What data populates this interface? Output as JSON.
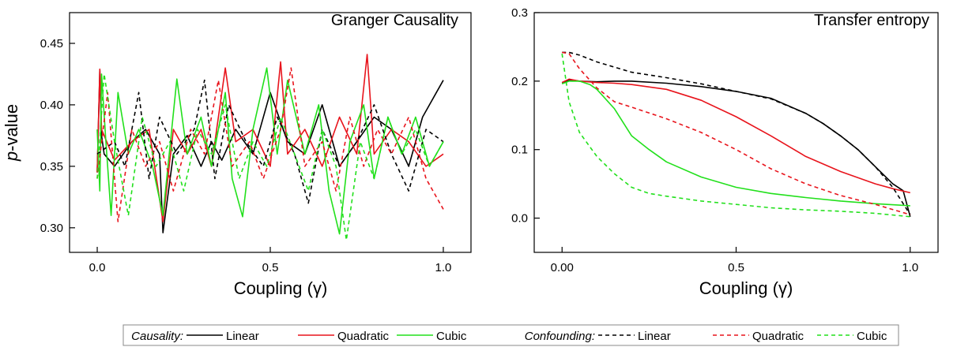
{
  "chart_data": [
    {
      "type": "line",
      "title": "Granger Causality",
      "xlabel": "Coupling (γ)",
      "ylabel_italic": "p",
      "ylabel_rest": "-value",
      "xlim": [
        -0.08,
        1.08
      ],
      "ylim": [
        0.28,
        0.475
      ],
      "xticks": [
        0.0,
        0.5,
        1.0
      ],
      "xtick_labels": [
        "0.0",
        "0.5",
        "1.0"
      ],
      "yticks": [
        0.3,
        0.35,
        0.4,
        0.45
      ],
      "ytick_labels": [
        "0.30",
        "0.35",
        "0.40",
        "0.45"
      ],
      "grid": false,
      "series": [
        {
          "name": "Linear",
          "color": "#000000",
          "dash": "solid",
          "x": [
            0.0,
            0.0075,
            0.0125,
            0.02,
            0.05,
            0.1,
            0.14,
            0.18,
            0.19,
            0.22,
            0.26,
            0.3,
            0.33,
            0.36,
            0.4,
            0.45,
            0.5,
            0.55,
            0.6,
            0.65,
            0.7,
            0.75,
            0.8,
            0.85,
            0.9,
            0.94,
            0.98,
            1.0
          ],
          "y": [
            0.345,
            0.428,
            0.375,
            0.36,
            0.35,
            0.37,
            0.38,
            0.36,
            0.296,
            0.36,
            0.375,
            0.35,
            0.37,
            0.355,
            0.38,
            0.36,
            0.41,
            0.37,
            0.36,
            0.4,
            0.35,
            0.37,
            0.39,
            0.38,
            0.35,
            0.39,
            0.41,
            0.42
          ]
        },
        {
          "name": "Quadratic",
          "color": "#e8141c",
          "dash": "solid",
          "x": [
            0.0,
            0.0075,
            0.0125,
            0.05,
            0.1,
            0.15,
            0.19,
            0.22,
            0.26,
            0.3,
            0.33,
            0.37,
            0.4,
            0.45,
            0.5,
            0.53,
            0.55,
            0.6,
            0.65,
            0.7,
            0.75,
            0.78,
            0.8,
            0.85,
            0.9,
            0.95,
            1.0
          ],
          "y": [
            0.345,
            0.429,
            0.38,
            0.355,
            0.37,
            0.38,
            0.305,
            0.38,
            0.36,
            0.38,
            0.35,
            0.43,
            0.37,
            0.38,
            0.35,
            0.435,
            0.36,
            0.38,
            0.35,
            0.39,
            0.36,
            0.441,
            0.36,
            0.38,
            0.37,
            0.35,
            0.36
          ]
        },
        {
          "name": "Cubic",
          "color": "#22e01c",
          "dash": "solid",
          "x": [
            0.0,
            0.0075,
            0.0125,
            0.025,
            0.04,
            0.06,
            0.09,
            0.12,
            0.16,
            0.19,
            0.23,
            0.26,
            0.3,
            0.33,
            0.37,
            0.39,
            0.42,
            0.45,
            0.49,
            0.52,
            0.55,
            0.6,
            0.64,
            0.67,
            0.7,
            0.73,
            0.77,
            0.8,
            0.84,
            0.88,
            0.92,
            0.96,
            1.0
          ],
          "y": [
            0.38,
            0.33,
            0.425,
            0.37,
            0.31,
            0.41,
            0.36,
            0.38,
            0.35,
            0.31,
            0.421,
            0.36,
            0.39,
            0.35,
            0.41,
            0.34,
            0.309,
            0.38,
            0.43,
            0.36,
            0.42,
            0.36,
            0.4,
            0.33,
            0.295,
            0.37,
            0.4,
            0.34,
            0.39,
            0.36,
            0.39,
            0.35,
            0.37
          ]
        },
        {
          "name": "Linear",
          "color": "#000000",
          "dash": "dashed",
          "x": [
            0.0,
            0.05,
            0.08,
            0.12,
            0.15,
            0.18,
            0.23,
            0.28,
            0.31,
            0.34,
            0.38,
            0.43,
            0.48,
            0.52,
            0.57,
            0.61,
            0.65,
            0.7,
            0.75,
            0.8,
            0.85,
            0.9,
            0.95,
            1.0
          ],
          "y": [
            0.36,
            0.37,
            0.35,
            0.41,
            0.34,
            0.39,
            0.36,
            0.38,
            0.42,
            0.34,
            0.4,
            0.37,
            0.35,
            0.39,
            0.36,
            0.32,
            0.38,
            0.35,
            0.37,
            0.4,
            0.36,
            0.33,
            0.38,
            0.37
          ]
        },
        {
          "name": "Quadratic",
          "color": "#e8141c",
          "dash": "dashed",
          "x": [
            0.0,
            0.03,
            0.06,
            0.1,
            0.14,
            0.18,
            0.22,
            0.27,
            0.31,
            0.35,
            0.39,
            0.44,
            0.48,
            0.53,
            0.56,
            0.6,
            0.65,
            0.69,
            0.73,
            0.77,
            0.81,
            0.85,
            0.9,
            0.95,
            1.0
          ],
          "y": [
            0.34,
            0.41,
            0.305,
            0.38,
            0.35,
            0.37,
            0.33,
            0.38,
            0.36,
            0.42,
            0.35,
            0.37,
            0.34,
            0.38,
            0.43,
            0.35,
            0.37,
            0.33,
            0.39,
            0.35,
            0.38,
            0.36,
            0.39,
            0.34,
            0.315
          ]
        },
        {
          "name": "Cubic",
          "color": "#22e01c",
          "dash": "dashed",
          "x": [
            0.0,
            0.02,
            0.05,
            0.09,
            0.13,
            0.17,
            0.21,
            0.25,
            0.29,
            0.33,
            0.37,
            0.41,
            0.45,
            0.49,
            0.53,
            0.57,
            0.61,
            0.65,
            0.69,
            0.72,
            0.76,
            0.8,
            0.84,
            0.88,
            0.92,
            0.96,
            1.0
          ],
          "y": [
            0.34,
            0.425,
            0.37,
            0.31,
            0.39,
            0.35,
            0.37,
            0.33,
            0.38,
            0.36,
            0.4,
            0.34,
            0.37,
            0.35,
            0.39,
            0.36,
            0.33,
            0.38,
            0.35,
            0.29,
            0.37,
            0.34,
            0.39,
            0.36,
            0.38,
            0.35,
            0.37
          ]
        }
      ]
    },
    {
      "type": "line",
      "title": "Transfer entropy",
      "xlabel": "Coupling (γ)",
      "xlim": [
        -0.08,
        1.08
      ],
      "ylim": [
        -0.05,
        0.3
      ],
      "xticks": [
        0.0,
        0.5,
        1.0
      ],
      "xtick_labels": [
        "0.00",
        "0.5",
        "1.0"
      ],
      "yticks": [
        0.0,
        0.1,
        0.2,
        0.3
      ],
      "ytick_labels": [
        "0.0",
        "0.1",
        "0.2",
        "0.3"
      ],
      "grid": false,
      "series": [
        {
          "name": "Linear",
          "color": "#000000",
          "dash": "solid",
          "x": [
            0.0,
            0.02,
            0.05,
            0.1,
            0.15,
            0.2,
            0.3,
            0.4,
            0.5,
            0.6,
            0.7,
            0.75,
            0.8,
            0.85,
            0.9,
            0.95,
            0.98,
            1.0
          ],
          "y": [
            0.197,
            0.202,
            0.2,
            0.199,
            0.2,
            0.2,
            0.197,
            0.192,
            0.185,
            0.175,
            0.153,
            0.138,
            0.12,
            0.1,
            0.075,
            0.05,
            0.04,
            0.002
          ]
        },
        {
          "name": "Quadratic",
          "color": "#e8141c",
          "dash": "solid",
          "x": [
            0.0,
            0.02,
            0.05,
            0.1,
            0.15,
            0.2,
            0.3,
            0.4,
            0.5,
            0.6,
            0.7,
            0.8,
            0.9,
            0.95,
            1.0
          ],
          "y": [
            0.198,
            0.203,
            0.2,
            0.198,
            0.197,
            0.195,
            0.188,
            0.172,
            0.148,
            0.12,
            0.09,
            0.068,
            0.05,
            0.043,
            0.037
          ]
        },
        {
          "name": "Cubic",
          "color": "#22e01c",
          "dash": "solid",
          "x": [
            0.0,
            0.02,
            0.05,
            0.08,
            0.1,
            0.15,
            0.2,
            0.25,
            0.3,
            0.4,
            0.5,
            0.6,
            0.7,
            0.8,
            0.9,
            1.0
          ],
          "y": [
            0.196,
            0.2,
            0.2,
            0.195,
            0.188,
            0.16,
            0.12,
            0.1,
            0.082,
            0.06,
            0.045,
            0.036,
            0.03,
            0.025,
            0.021,
            0.018
          ]
        },
        {
          "name": "Linear",
          "color": "#000000",
          "dash": "dashed",
          "x": [
            0.0,
            0.02,
            0.05,
            0.1,
            0.2,
            0.3,
            0.4,
            0.5,
            0.6,
            0.7,
            0.75,
            0.8,
            0.85,
            0.9,
            0.95,
            1.0
          ],
          "y": [
            0.242,
            0.242,
            0.238,
            0.228,
            0.213,
            0.205,
            0.196,
            0.185,
            0.174,
            0.153,
            0.138,
            0.12,
            0.1,
            0.075,
            0.045,
            0.005
          ]
        },
        {
          "name": "Quadratic",
          "color": "#e8141c",
          "dash": "dashed",
          "x": [
            0.0,
            0.02,
            0.05,
            0.1,
            0.15,
            0.2,
            0.3,
            0.4,
            0.5,
            0.6,
            0.7,
            0.8,
            0.9,
            1.0
          ],
          "y": [
            0.242,
            0.24,
            0.218,
            0.19,
            0.17,
            0.162,
            0.145,
            0.125,
            0.1,
            0.072,
            0.05,
            0.033,
            0.02,
            0.005
          ]
        },
        {
          "name": "Cubic",
          "color": "#22e01c",
          "dash": "dashed",
          "x": [
            0.0,
            0.02,
            0.05,
            0.1,
            0.15,
            0.2,
            0.25,
            0.3,
            0.4,
            0.5,
            0.6,
            0.7,
            0.8,
            0.9,
            1.0
          ],
          "y": [
            0.24,
            0.17,
            0.125,
            0.09,
            0.065,
            0.045,
            0.036,
            0.032,
            0.025,
            0.02,
            0.015,
            0.012,
            0.01,
            0.007,
            0.002
          ]
        }
      ]
    }
  ],
  "legend": {
    "causality_label": "Causality:",
    "confounding_label": "Confounding:",
    "entries": [
      {
        "label": "Linear",
        "color": "#000000",
        "dash": "solid"
      },
      {
        "label": "Quadratic",
        "color": "#e8141c",
        "dash": "solid"
      },
      {
        "label": "Cubic",
        "color": "#22e01c",
        "dash": "solid"
      },
      {
        "label": "Linear",
        "color": "#000000",
        "dash": "dashed"
      },
      {
        "label": "Quadratic",
        "color": "#e8141c",
        "dash": "dashed"
      },
      {
        "label": "Cubic",
        "color": "#22e01c",
        "dash": "dashed"
      }
    ]
  }
}
